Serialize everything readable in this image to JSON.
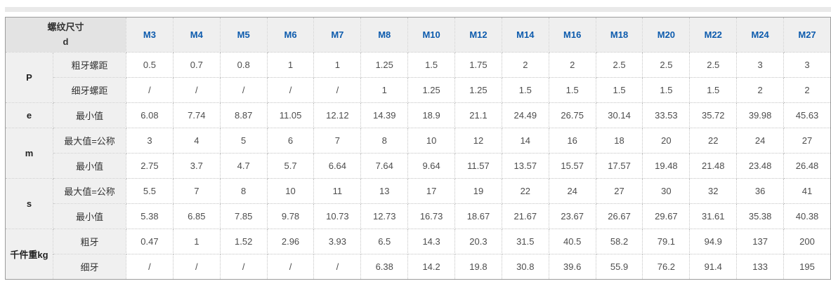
{
  "table": {
    "corner": {
      "line1": "螺纹尺寸",
      "line2": "d"
    },
    "sizes": [
      "M3",
      "M4",
      "M5",
      "M6",
      "M7",
      "M8",
      "M10",
      "M12",
      "M14",
      "M16",
      "M18",
      "M20",
      "M22",
      "M24",
      "M27"
    ],
    "groups": [
      {
        "label": "P",
        "rows": [
          {
            "sub": "粗牙螺距",
            "values": [
              "0.5",
              "0.7",
              "0.8",
              "1",
              "1",
              "1.25",
              "1.5",
              "1.75",
              "2",
              "2",
              "2.5",
              "2.5",
              "2.5",
              "3",
              "3"
            ]
          },
          {
            "sub": "细牙螺距",
            "values": [
              "/",
              "/",
              "/",
              "/",
              "/",
              "1",
              "1.25",
              "1.25",
              "1.5",
              "1.5",
              "1.5",
              "1.5",
              "1.5",
              "2",
              "2"
            ]
          }
        ]
      },
      {
        "label": "e",
        "rows": [
          {
            "sub": "最小值",
            "values": [
              "6.08",
              "7.74",
              "8.87",
              "11.05",
              "12.12",
              "14.39",
              "18.9",
              "21.1",
              "24.49",
              "26.75",
              "30.14",
              "33.53",
              "35.72",
              "39.98",
              "45.63"
            ]
          }
        ]
      },
      {
        "label": "m",
        "rows": [
          {
            "sub": "最大值=公称",
            "values": [
              "3",
              "4",
              "5",
              "6",
              "7",
              "8",
              "10",
              "12",
              "14",
              "16",
              "18",
              "20",
              "22",
              "24",
              "27"
            ]
          },
          {
            "sub": "最小值",
            "values": [
              "2.75",
              "3.7",
              "4.7",
              "5.7",
              "6.64",
              "7.64",
              "9.64",
              "11.57",
              "13.57",
              "15.57",
              "17.57",
              "19.48",
              "21.48",
              "23.48",
              "26.48"
            ]
          }
        ]
      },
      {
        "label": "s",
        "rows": [
          {
            "sub": "最大值=公称",
            "values": [
              "5.5",
              "7",
              "8",
              "10",
              "11",
              "13",
              "17",
              "19",
              "22",
              "24",
              "27",
              "30",
              "32",
              "36",
              "41"
            ]
          },
          {
            "sub": "最小值",
            "values": [
              "5.38",
              "6.85",
              "7.85",
              "9.78",
              "10.73",
              "12.73",
              "16.73",
              "18.67",
              "21.67",
              "23.67",
              "26.67",
              "29.67",
              "31.61",
              "35.38",
              "40.38"
            ]
          }
        ]
      },
      {
        "label": "千件重kg",
        "rows": [
          {
            "sub": "粗牙",
            "values": [
              "0.47",
              "1",
              "1.52",
              "2.96",
              "3.93",
              "6.5",
              "14.3",
              "20.3",
              "31.5",
              "40.5",
              "58.2",
              "79.1",
              "94.9",
              "137",
              "200"
            ]
          },
          {
            "sub": "细牙",
            "values": [
              "/",
              "/",
              "/",
              "/",
              "/",
              "6.38",
              "14.2",
              "19.8",
              "30.8",
              "39.6",
              "55.9",
              "76.2",
              "91.4",
              "133",
              "195"
            ]
          }
        ]
      }
    ],
    "colors": {
      "size_header_text": "#0d5bad",
      "corner_bg": "#e3e3e3",
      "size_header_bg": "#efefef",
      "label_bg": "#f0f0f0",
      "outer_border": "#9c9c9c",
      "inner_border": "#c3c3c3",
      "top_bar": "#e9e9e9"
    }
  }
}
